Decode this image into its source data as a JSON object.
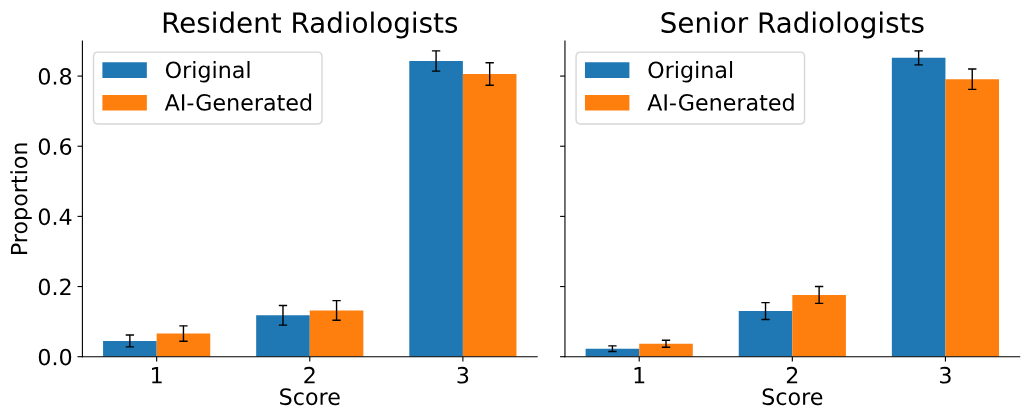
{
  "chart_data": [
    {
      "type": "bar",
      "title": "Resident Radiologists",
      "xlabel": "Score",
      "ylabel": "Proportion",
      "categories": [
        "1",
        "2",
        "3"
      ],
      "series": [
        {
          "name": "Original",
          "color": "#1f77b4",
          "values": [
            0.045,
            0.118,
            0.843
          ],
          "errors": [
            0.017,
            0.028,
            0.029
          ]
        },
        {
          "name": "AI-Generated",
          "color": "#ff7f0e",
          "values": [
            0.066,
            0.132,
            0.806
          ],
          "errors": [
            0.022,
            0.028,
            0.032
          ]
        }
      ],
      "ylim": [
        0,
        0.9
      ],
      "yticks": [
        {
          "value": 0,
          "label": "0.0"
        },
        {
          "value": 0.2,
          "label": "0.2"
        },
        {
          "value": 0.4,
          "label": "0.4"
        },
        {
          "value": 0.6,
          "label": "0.6"
        },
        {
          "value": 0.8,
          "label": "0.8"
        }
      ],
      "legend": "top left"
    },
    {
      "type": "bar",
      "title": "Senior Radiologists",
      "xlabel": "Score",
      "categories": [
        "1",
        "2",
        "3"
      ],
      "series": [
        {
          "name": "Original",
          "color": "#1f77b4",
          "values": [
            0.023,
            0.13,
            0.852
          ],
          "errors": [
            0.008,
            0.024,
            0.02
          ]
        },
        {
          "name": "AI-Generated",
          "color": "#ff7f0e",
          "values": [
            0.037,
            0.176,
            0.791
          ],
          "errors": [
            0.01,
            0.024,
            0.029
          ]
        }
      ],
      "ylim": [
        0,
        0.9
      ],
      "yticks": [
        {
          "value": 0,
          "label": null
        },
        {
          "value": 0.2,
          "label": null
        },
        {
          "value": 0.4,
          "label": null
        },
        {
          "value": 0.6,
          "label": null
        },
        {
          "value": 0.8,
          "label": null
        }
      ],
      "tick_labels": "x",
      "legend": "top left"
    }
  ]
}
